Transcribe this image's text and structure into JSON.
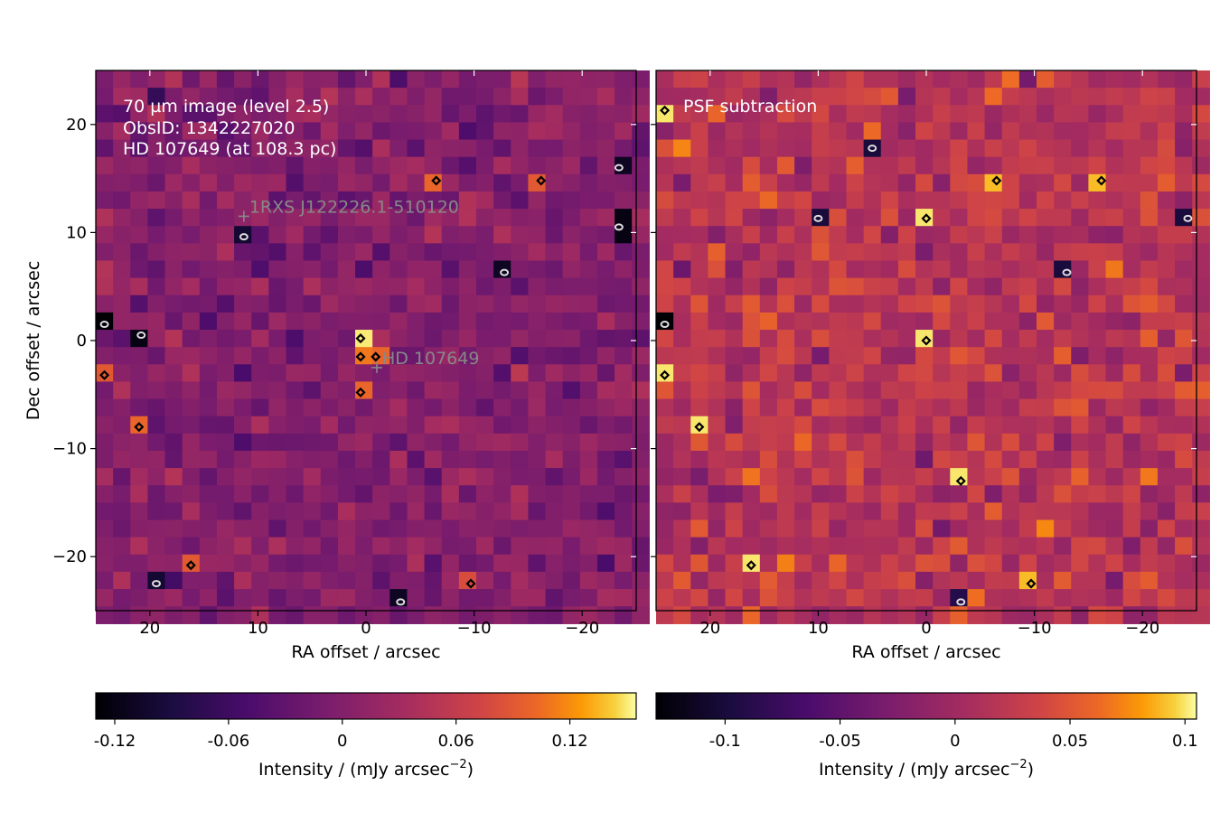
{
  "chart_data": [
    {
      "type": "heatmap",
      "panel": "left",
      "xlabel": "RA offset / arcsec",
      "ylabel": "Dec offset / arcsec",
      "xlim": [
        25,
        -25
      ],
      "ylim": [
        -25,
        25
      ],
      "xticks": [
        20,
        10,
        0,
        -10,
        -20
      ],
      "xtick_labels": [
        "20",
        "10",
        "0",
        "−10",
        "−20"
      ],
      "yticks": [
        20,
        10,
        0,
        -10,
        -20
      ],
      "ytick_labels": [
        "20",
        "10",
        "0",
        "−10",
        "−20"
      ],
      "pixel_size_arcsec": 1.6,
      "colormap": "inferno",
      "annotation_lines": [
        "70 µm image (level 2.5)",
        "ObsID: 1342227020",
        "HD 107649 (at 108.3 pc)"
      ],
      "markers": [
        {
          "x": 11.3,
          "y": 11.5,
          "label": "1RXS J122226.1-510120"
        },
        {
          "x": -1.0,
          "y": -2.5,
          "label": "HD 107649"
        }
      ],
      "colorbar": {
        "range": [
          -0.13,
          0.155
        ],
        "ticks": [
          -0.12,
          -0.06,
          0,
          0.06,
          0.12
        ],
        "tick_labels": [
          "-0.12",
          "-0.06",
          "0",
          "0.06",
          "0.12"
        ],
        "label": "Intensity / (mJy arcsec",
        "label_sup": "−2",
        "label_end": ")"
      },
      "bright_pixels": [
        {
          "x": 0.5,
          "y": 0.2,
          "value": 0.15
        },
        {
          "x": 0.5,
          "y": -1.5,
          "value": 0.11
        },
        {
          "x": 0.5,
          "y": -4.8,
          "value": 0.1
        },
        {
          "x": -0.9,
          "y": -1.5,
          "value": 0.1
        },
        {
          "x": -6.5,
          "y": 14.8,
          "value": 0.1
        },
        {
          "x": -16.2,
          "y": 14.8,
          "value": 0.09
        },
        {
          "x": 21.0,
          "y": -8.0,
          "value": 0.1
        },
        {
          "x": 16.2,
          "y": -20.8,
          "value": 0.09
        },
        {
          "x": 24.2,
          "y": -3.2,
          "value": 0.09
        },
        {
          "x": -9.7,
          "y": -22.5,
          "value": 0.08
        }
      ],
      "dark_pixels": [
        {
          "x": 24.2,
          "y": 1.5,
          "value": -0.13
        },
        {
          "x": 20.8,
          "y": 0.5,
          "value": -0.12
        },
        {
          "x": -23.4,
          "y": 10.5,
          "value": -0.12
        },
        {
          "x": -23.4,
          "y": 16.0,
          "value": -0.11
        },
        {
          "x": -12.8,
          "y": 6.3,
          "value": -0.11
        },
        {
          "x": -3.2,
          "y": -24.2,
          "value": -0.11
        },
        {
          "x": 11.3,
          "y": 9.6,
          "value": -0.1
        },
        {
          "x": 19.4,
          "y": -22.5,
          "value": -0.1
        }
      ]
    },
    {
      "type": "heatmap",
      "panel": "right",
      "xlabel": "RA offset / arcsec",
      "xlim": [
        25,
        -25
      ],
      "ylim": [
        -25,
        25
      ],
      "xticks": [
        20,
        10,
        0,
        -10,
        -20
      ],
      "xtick_labels": [
        "20",
        "10",
        "0",
        "−10",
        "−20"
      ],
      "colormap": "inferno",
      "annotation_lines": [
        "PSF subtraction"
      ],
      "colorbar": {
        "range": [
          -0.13,
          0.105
        ],
        "ticks": [
          -0.1,
          -0.05,
          0,
          0.05,
          0.1
        ],
        "tick_labels": [
          "-0.1",
          "-0.05",
          "0",
          "0.05",
          "0.1"
        ],
        "label": "Intensity / (mJy arcsec",
        "label_sup": "−2",
        "label_end": ")"
      },
      "bright_pixels": [
        {
          "x": 24.2,
          "y": 21.3,
          "value": 0.1
        },
        {
          "x": 0.0,
          "y": 11.3,
          "value": 0.1
        },
        {
          "x": -6.5,
          "y": 14.8,
          "value": 0.09
        },
        {
          "x": -16.2,
          "y": 14.8,
          "value": 0.09
        },
        {
          "x": 0.0,
          "y": 0.0,
          "value": 0.1
        },
        {
          "x": 24.2,
          "y": -3.2,
          "value": 0.1
        },
        {
          "x": 21.0,
          "y": -8.0,
          "value": 0.1
        },
        {
          "x": -3.2,
          "y": -13.0,
          "value": 0.1
        },
        {
          "x": 16.2,
          "y": -20.8,
          "value": 0.1
        },
        {
          "x": -9.7,
          "y": -22.5,
          "value": 0.09
        }
      ],
      "dark_pixels": [
        {
          "x": 24.2,
          "y": 1.5,
          "value": -0.13
        },
        {
          "x": 5.0,
          "y": 17.8,
          "value": -0.1
        },
        {
          "x": 10.0,
          "y": 11.3,
          "value": -0.1
        },
        {
          "x": -13.0,
          "y": 6.3,
          "value": -0.1
        },
        {
          "x": -24.2,
          "y": 11.3,
          "value": -0.1
        },
        {
          "x": -3.2,
          "y": -24.2,
          "value": -0.09
        }
      ]
    }
  ]
}
